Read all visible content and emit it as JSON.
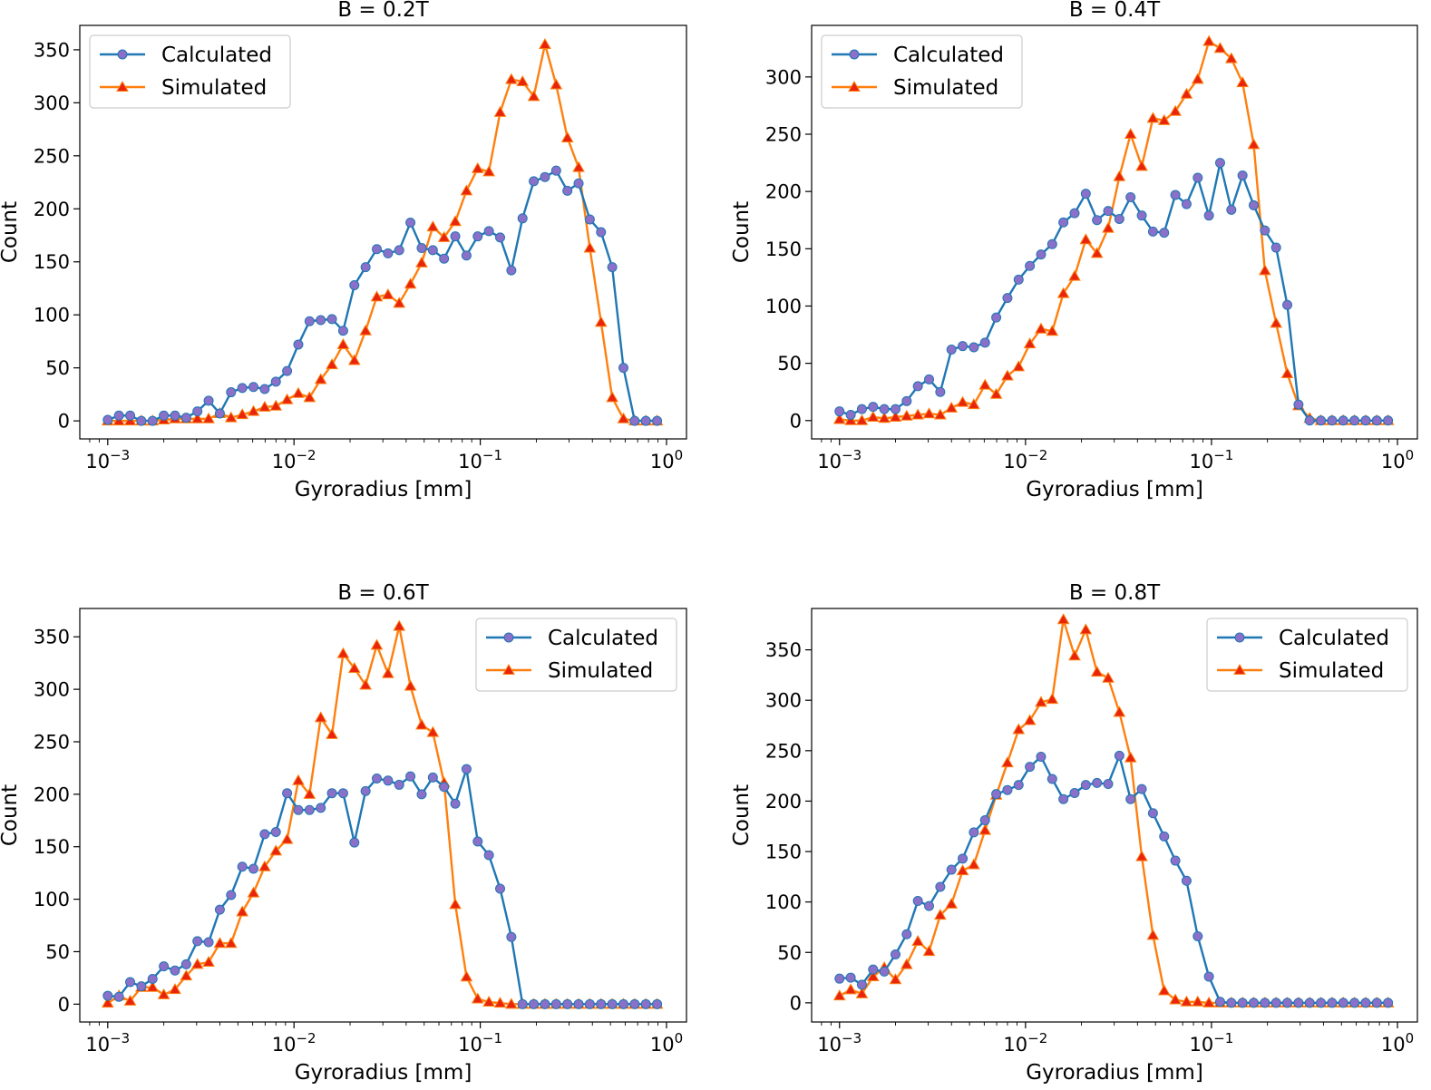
{
  "colors": {
    "calculated": "#1f77b4",
    "calculated_marker": "#8a70c8",
    "simulated": "#ff7f0e",
    "simulated_marker": "#e8240c"
  },
  "chart_data": [
    {
      "type": "line",
      "title": "B = 0.2T",
      "xlabel": "Gyroradius [mm]",
      "ylabel": "Count",
      "xscale": "log",
      "xlim": [
        0.000708,
        1.28
      ],
      "ylim": [
        -17,
        373
      ],
      "yticks": [
        "0",
        "50",
        "100",
        "150",
        "200",
        "250",
        "300",
        "350"
      ],
      "xticks": [
        {
          "base": "10",
          "exp": "−3"
        },
        {
          "base": "10",
          "exp": "−2"
        },
        {
          "base": "10",
          "exp": "−1"
        },
        {
          "base": "10",
          "exp": "0"
        }
      ],
      "legend": {
        "position": "upper left",
        "entries": [
          "Calculated",
          "Simulated"
        ]
      },
      "series": [
        {
          "name": "Calculated",
          "values": [
            1,
            5,
            5,
            0,
            0,
            5,
            5,
            3,
            9,
            19,
            7,
            27,
            31,
            32,
            30,
            37,
            47,
            72,
            94,
            95,
            96,
            85,
            128,
            145,
            162,
            158,
            161,
            187,
            163,
            161,
            153,
            174,
            156,
            174,
            179,
            173,
            142,
            191,
            226,
            230,
            236,
            217,
            224,
            190,
            178,
            145,
            50,
            0,
            0,
            0
          ]
        },
        {
          "name": "Simulated",
          "values": [
            0,
            0,
            0,
            0,
            0,
            1,
            2,
            2,
            2,
            2,
            7,
            3,
            6,
            9,
            13,
            14,
            20,
            26,
            22,
            39,
            53,
            72,
            57,
            85,
            117,
            119,
            111,
            129,
            149,
            183,
            173,
            188,
            217,
            238,
            235,
            291,
            322,
            320,
            306,
            355,
            317,
            267,
            239,
            163,
            93,
            22,
            2,
            0,
            0,
            0
          ]
        }
      ]
    },
    {
      "type": "line",
      "title": "B = 0.4T",
      "xlabel": "Gyroradius [mm]",
      "ylabel": "Count",
      "xscale": "log",
      "xlim": [
        0.000708,
        1.28
      ],
      "ylim": [
        -16,
        345
      ],
      "yticks": [
        "0",
        "50",
        "100",
        "150",
        "200",
        "250",
        "300"
      ],
      "xticks": [
        {
          "base": "10",
          "exp": "−3"
        },
        {
          "base": "10",
          "exp": "−2"
        },
        {
          "base": "10",
          "exp": "−1"
        },
        {
          "base": "10",
          "exp": "0"
        }
      ],
      "legend": {
        "position": "upper left",
        "entries": [
          "Calculated",
          "Simulated"
        ]
      },
      "series": [
        {
          "name": "Calculated",
          "values": [
            8,
            5,
            10,
            12,
            10,
            10,
            17,
            30,
            36,
            25,
            62,
            65,
            64,
            68,
            90,
            107,
            123,
            135,
            145,
            154,
            173,
            181,
            198,
            175,
            183,
            176,
            195,
            179,
            165,
            164,
            197,
            189,
            212,
            179,
            225,
            184,
            214,
            188,
            166,
            151,
            101,
            14,
            0,
            0,
            0,
            0,
            0,
            0,
            0,
            0
          ]
        },
        {
          "name": "Simulated",
          "values": [
            1,
            0,
            0,
            3,
            2,
            3,
            4,
            5,
            6,
            5,
            11,
            16,
            14,
            31,
            23,
            39,
            47,
            67,
            80,
            78,
            111,
            126,
            158,
            146,
            168,
            213,
            250,
            222,
            264,
            262,
            270,
            285,
            298,
            331,
            325,
            316,
            295,
            241,
            131,
            85,
            41,
            13,
            2,
            0,
            0,
            0,
            0,
            0,
            0,
            0
          ]
        }
      ]
    },
    {
      "type": "line",
      "title": "B = 0.6T",
      "xlabel": "Gyroradius [mm]",
      "ylabel": "Count",
      "xscale": "log",
      "xlim": [
        0.000708,
        1.28
      ],
      "ylim": [
        -17,
        377
      ],
      "yticks": [
        "0",
        "50",
        "100",
        "150",
        "200",
        "250",
        "300",
        "350"
      ],
      "xticks": [
        {
          "base": "10",
          "exp": "−3"
        },
        {
          "base": "10",
          "exp": "−2"
        },
        {
          "base": "10",
          "exp": "−1"
        },
        {
          "base": "10",
          "exp": "0"
        }
      ],
      "legend": {
        "position": "upper right",
        "entries": [
          "Calculated",
          "Simulated"
        ]
      },
      "series": [
        {
          "name": "Calculated",
          "values": [
            8,
            7,
            21,
            17,
            24,
            36,
            32,
            38,
            60,
            59,
            90,
            104,
            131,
            129,
            162,
            164,
            201,
            185,
            185,
            187,
            201,
            201,
            154,
            203,
            215,
            213,
            209,
            217,
            200,
            216,
            207,
            191,
            224,
            155,
            142,
            110,
            64,
            0,
            0,
            0,
            0,
            0,
            0,
            0,
            0,
            0,
            0,
            0,
            0,
            0
          ]
        },
        {
          "name": "Simulated",
          "values": [
            1,
            8,
            3,
            16,
            16,
            9,
            14,
            27,
            38,
            40,
            58,
            58,
            88,
            106,
            131,
            146,
            157,
            213,
            200,
            273,
            257,
            334,
            320,
            304,
            342,
            315,
            360,
            303,
            266,
            259,
            211,
            95,
            26,
            5,
            2,
            1,
            0,
            0,
            0,
            0,
            0,
            0,
            0,
            0,
            0,
            0,
            0,
            0,
            0,
            0
          ]
        }
      ]
    },
    {
      "type": "line",
      "title": "B = 0.8T",
      "xlabel": "Gyroradius [mm]",
      "ylabel": "Count",
      "xscale": "log",
      "xlim": [
        0.000708,
        1.28
      ],
      "ylim": [
        -19,
        391
      ],
      "yticks": [
        "0",
        "50",
        "100",
        "150",
        "200",
        "250",
        "300",
        "350"
      ],
      "xticks": [
        {
          "base": "10",
          "exp": "−3"
        },
        {
          "base": "10",
          "exp": "−2"
        },
        {
          "base": "10",
          "exp": "−1"
        },
        {
          "base": "10",
          "exp": "0"
        }
      ],
      "legend": {
        "position": "upper right",
        "entries": [
          "Calculated",
          "Simulated"
        ]
      },
      "series": [
        {
          "name": "Calculated",
          "values": [
            24,
            25,
            18,
            33,
            31,
            48,
            68,
            101,
            96,
            115,
            132,
            143,
            169,
            181,
            207,
            211,
            216,
            234,
            244,
            222,
            202,
            208,
            216,
            218,
            217,
            245,
            202,
            212,
            188,
            165,
            141,
            121,
            66,
            26,
            1,
            0,
            0,
            0,
            0,
            0,
            0,
            0,
            0,
            0,
            0,
            0,
            0,
            0,
            0,
            0
          ]
        },
        {
          "name": "Simulated",
          "values": [
            7,
            13,
            9,
            26,
            35,
            23,
            38,
            61,
            51,
            87,
            98,
            131,
            137,
            171,
            206,
            238,
            271,
            280,
            298,
            301,
            380,
            344,
            370,
            328,
            322,
            288,
            243,
            145,
            67,
            12,
            3,
            1,
            1,
            0,
            0,
            0,
            0,
            0,
            0,
            0,
            0,
            0,
            0,
            0,
            0,
            0,
            0,
            0,
            0,
            0
          ]
        }
      ]
    }
  ]
}
